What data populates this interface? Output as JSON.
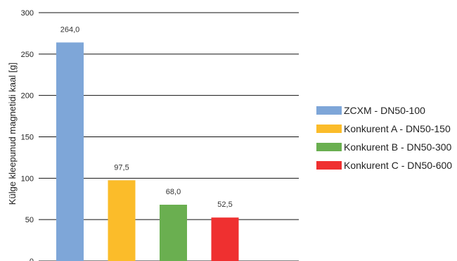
{
  "chart_data": {
    "type": "bar",
    "title": "",
    "xlabel": "",
    "ylabel": "Külge kleepunud magnetidi kaal [g]",
    "ylim": [
      0,
      300
    ],
    "yticks": [
      0,
      50,
      100,
      150,
      200,
      250,
      300
    ],
    "grid": true,
    "legend": "right",
    "categories": [
      "ZCXM - DN50-100",
      "Konkurent A - DN50-150",
      "Konkurent B - DN50-300",
      "Konkurent C - DN50-600"
    ],
    "values": [
      264.0,
      97.5,
      68.0,
      52.5
    ],
    "data_labels": [
      "264,0",
      "97,5",
      "68,0",
      "52,5"
    ],
    "colors": [
      "#7ea6d8",
      "#fbbc2a",
      "#6aaf50",
      "#ef3030"
    ]
  }
}
